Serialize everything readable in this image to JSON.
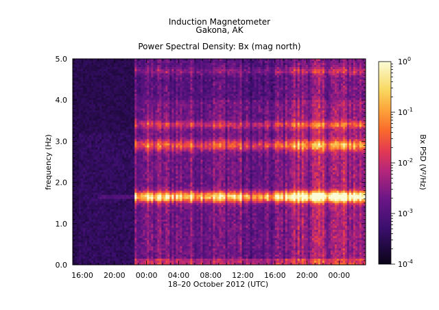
{
  "chart_data": {
    "type": "heatmap",
    "title": "Induction Magnetometer",
    "subtitle": "Gakona, AK",
    "plot_title": "Power Spectral Density: Bx (mag north)",
    "xlabel": "18–20 October 2012 (UTC)",
    "ylabel": "frequency (Hz)",
    "x_tick_labels": [
      "16:00",
      "20:00",
      "00:00",
      "04:00",
      "08:00",
      "12:00",
      "16:00",
      "20:00",
      "00:00"
    ],
    "x_tick_hours": [
      16,
      20,
      24,
      28,
      32,
      36,
      40,
      44,
      48
    ],
    "x_range_hours": [
      14.8,
      51.3
    ],
    "y_tick_labels": [
      "0.0",
      "1.0",
      "2.0",
      "3.0",
      "4.0",
      "5.0"
    ],
    "y_ticks": [
      0,
      1,
      2,
      3,
      4,
      5
    ],
    "ylim": [
      0,
      5
    ],
    "colorbar": {
      "label": "Bx PSD (V²/Hz)",
      "scale": "log",
      "range": [
        0.0001,
        1
      ],
      "tick_labels": [
        "10",
        "10",
        "10",
        "10",
        "10"
      ],
      "tick_exponents": [
        "-4",
        "-3",
        "-2",
        "-1",
        "0"
      ],
      "tick_values": [
        0.0001,
        0.001,
        0.01,
        0.1,
        1
      ]
    },
    "features": {
      "data_gap_end_hour": 22.6,
      "bands_hz": [
        1.65,
        2.9,
        3.4,
        4.7
      ],
      "strong_activity_start_hour": 41.5
    }
  }
}
